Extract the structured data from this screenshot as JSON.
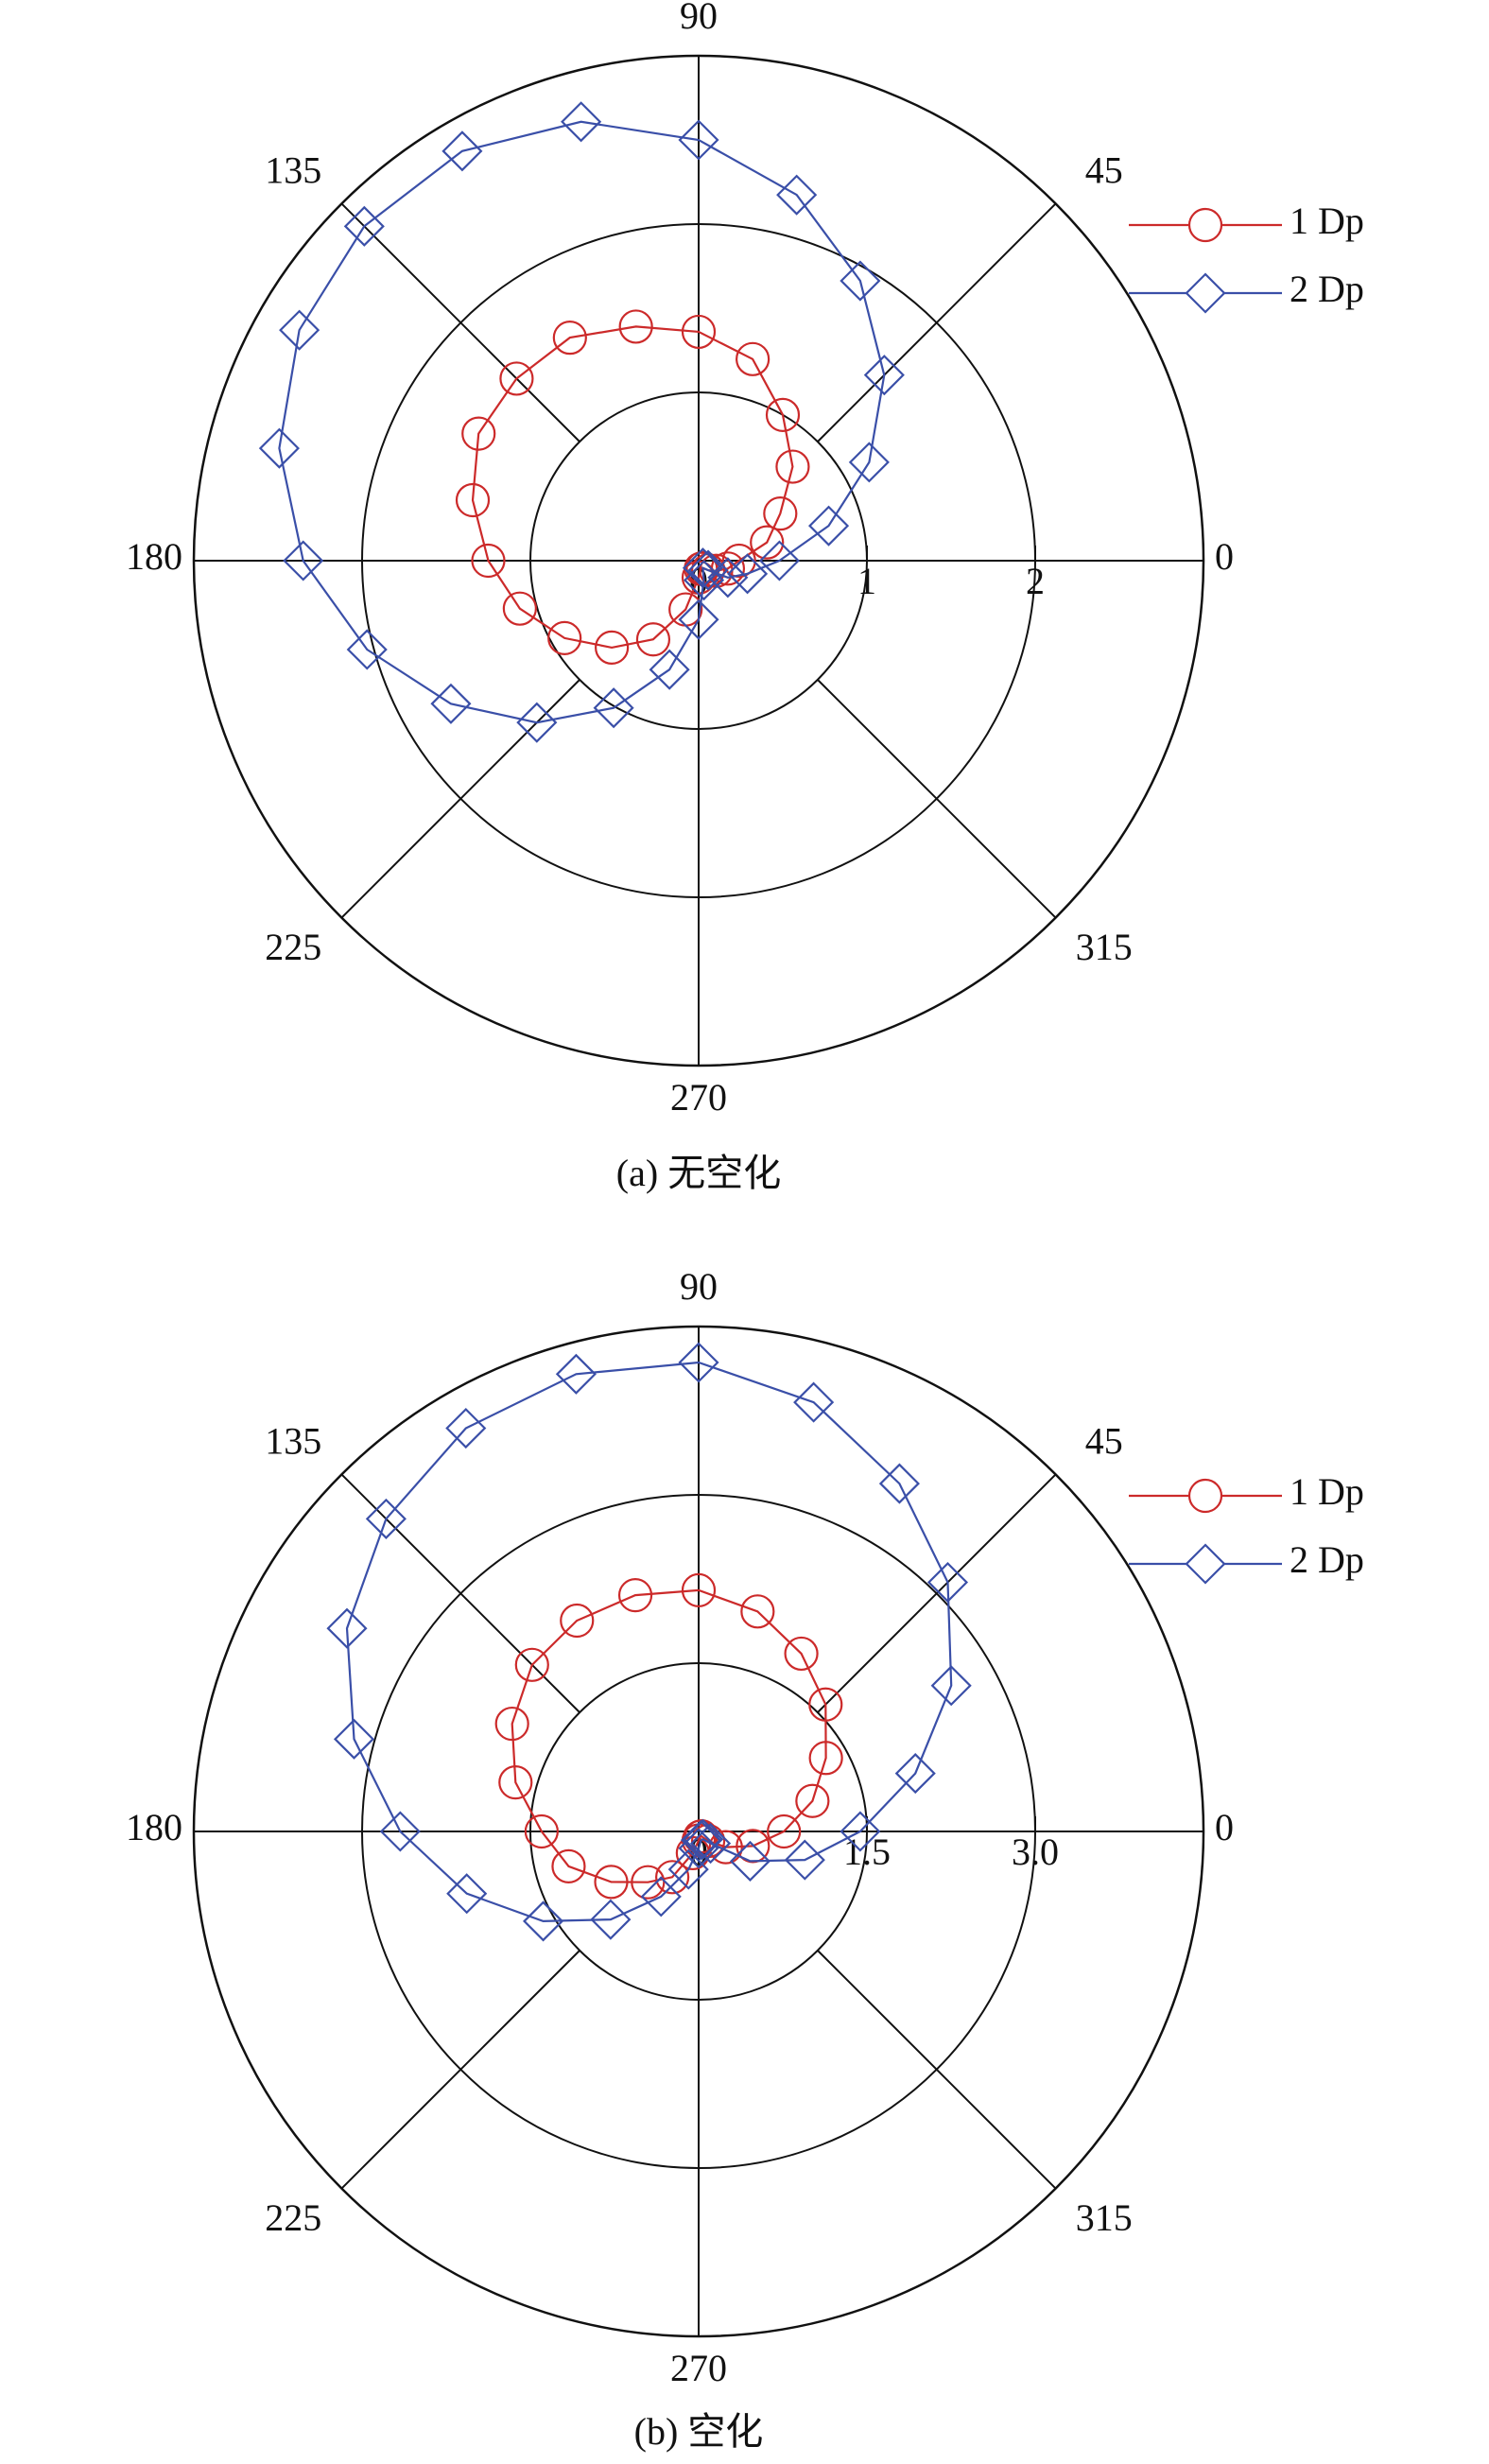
{
  "chart_data": [
    {
      "type": "polar",
      "caption": "(a) 无空化",
      "theta": [
        0,
        15,
        30,
        45,
        60,
        75,
        90,
        105,
        120,
        135,
        150,
        165,
        180,
        195,
        210,
        225,
        240,
        255,
        270,
        285,
        300,
        315,
        330,
        345
      ],
      "rlim": [
        0,
        3
      ],
      "rticks": [
        0,
        1,
        2
      ],
      "thetaticks": [
        0,
        45,
        90,
        135,
        180,
        225,
        270,
        315
      ],
      "legend": "upper right",
      "series": [
        {
          "name": "1 Dp",
          "color": "#cc2a2a",
          "marker": "circle",
          "values": [
            0.24,
            0.42,
            0.56,
            0.79,
            1.0,
            1.24,
            1.36,
            1.44,
            1.53,
            1.53,
            1.51,
            1.39,
            1.25,
            1.1,
            0.92,
            0.73,
            0.54,
            0.3,
            0.1,
            0.05,
            0.05,
            0.08,
            0.12,
            0.18
          ]
        },
        {
          "name": "2 Dp",
          "color": "#3a4fa8",
          "marker": "diamond",
          "values": [
            0.48,
            0.8,
            1.17,
            1.56,
            1.92,
            2.25,
            2.5,
            2.7,
            2.81,
            2.81,
            2.74,
            2.58,
            2.35,
            2.04,
            1.7,
            1.36,
            1.01,
            0.67,
            0.35,
            0.12,
            0.05,
            0.08,
            0.2,
            0.3
          ]
        }
      ]
    },
    {
      "type": "polar",
      "caption": "(b) 空化",
      "theta": [
        0,
        15,
        30,
        45,
        60,
        75,
        90,
        105,
        120,
        135,
        150,
        165,
        180,
        195,
        210,
        225,
        240,
        255,
        270,
        285,
        300,
        315,
        330,
        345
      ],
      "rlim": [
        0,
        4.5
      ],
      "rticks": [
        0,
        1.5,
        {
          "value": 3,
          "label": "3.0"
        }
      ],
      "thetaticks": [
        0,
        45,
        90,
        135,
        180,
        225,
        270,
        315
      ],
      "legend": "upper right",
      "series": [
        {
          "name": "1 Dp",
          "color": "#cc2a2a",
          "marker": "circle",
          "values": [
            0.76,
            1.05,
            1.31,
            1.6,
            1.83,
            2.03,
            2.15,
            2.18,
            2.17,
            2.1,
            1.92,
            1.69,
            1.4,
            1.2,
            0.9,
            0.64,
            0.47,
            0.2,
            0.08,
            0.05,
            0.05,
            0.12,
            0.28,
            0.5
          ]
        },
        {
          "name": "2 Dp",
          "color": "#3a4fa8",
          "marker": "diamond",
          "values": [
            1.44,
            2.0,
            2.6,
            3.14,
            3.58,
            3.96,
            4.18,
            4.22,
            4.15,
            3.94,
            3.62,
            3.18,
            2.66,
            2.14,
            1.6,
            1.11,
            0.67,
            0.35,
            0.15,
            0.08,
            0.08,
            0.15,
            0.53,
            0.98
          ]
        }
      ]
    }
  ]
}
